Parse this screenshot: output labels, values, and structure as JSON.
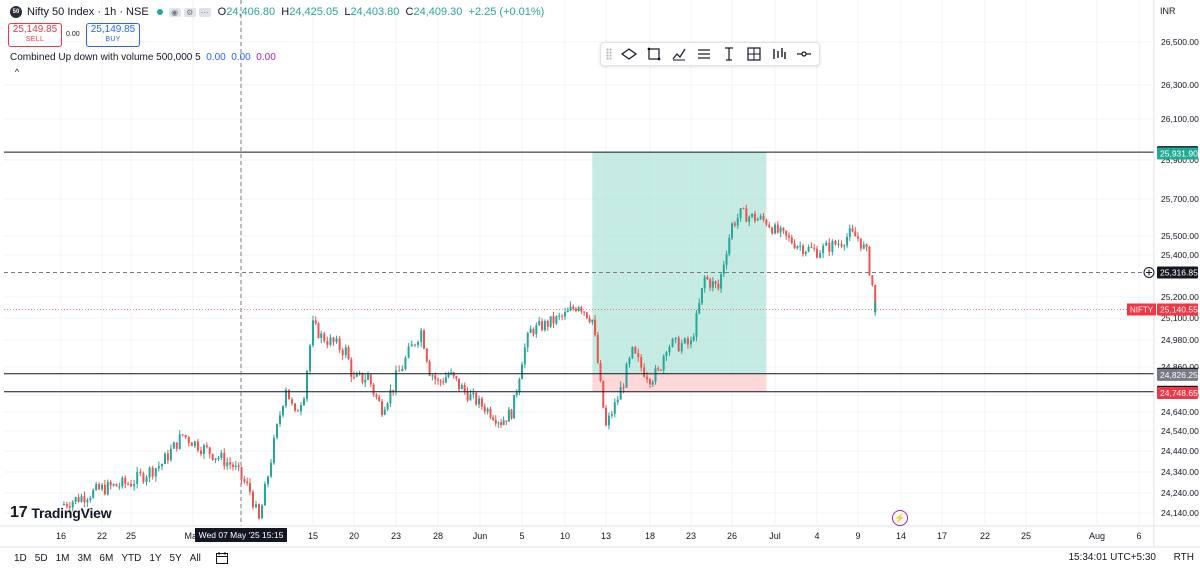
{
  "header": {
    "symbol_badge": "50",
    "title": "Nifty 50 Index · 1h · NSE",
    "ohlc": {
      "o_label": "O",
      "o": "24,406.80",
      "h_label": "H",
      "h": "24,425.05",
      "l_label": "L",
      "l": "24,403.80",
      "c_label": "C",
      "c": "24,409.30",
      "change": "+2.25 (+0.01%)"
    },
    "sell_price": "25,149.85",
    "sell_label": "SELL",
    "spread": "0.00",
    "buy_price": "25,149.85",
    "buy_label": "BUY",
    "indicator": "Combined Up down with volume 500,000 5",
    "indicator_v1": "0.00",
    "indicator_v2": "0.00",
    "indicator_v3": "0.00",
    "collapse_glyph": "^"
  },
  "currency": "INR",
  "logo_mark": "17",
  "logo_text": "TradingView",
  "bolt_glyph": "⚡",
  "crosshair_label": "Wed 07 May '25  15:15",
  "bottom_bar": {
    "ranges": [
      "1D",
      "5D",
      "1M",
      "3M",
      "6M",
      "YTD",
      "1Y",
      "5Y",
      "All"
    ],
    "time": "15:34:01 UTC+5:30",
    "session": "RTH"
  },
  "colors": {
    "up": "#26a69a",
    "down": "#ef5350",
    "target_zone": "#b2e4da",
    "stop_zone": "#fcd4d4",
    "label_dark": "#131722"
  },
  "chart_data": {
    "type": "candlestick",
    "title": "Nifty 50 Index · 1h · NSE",
    "y_axis": {
      "ticks": [
        "26,500.00",
        "26,300.00",
        "26,100.00",
        "25,900.00",
        "25,700.00",
        "25,500.00",
        "25,400.00",
        "25,200.00",
        "25,100.00",
        "24,980.00",
        "24,860.00",
        "24,740.00",
        "24,640.00",
        "24,540.00",
        "24,440.00",
        "24,340.00",
        "24,240.00",
        "24,140.00"
      ],
      "tick_values": [
        26500,
        26300,
        26100,
        25900,
        25700,
        25500,
        25400,
        25200,
        25100,
        24980,
        24860,
        24740,
        24640,
        24540,
        24440,
        24340,
        24240,
        24140
      ]
    },
    "x_axis": {
      "ticks": [
        "16",
        "22",
        "25",
        "May",
        "",
        "15",
        "20",
        "23",
        "28",
        "Jun",
        "5",
        "10",
        "13",
        "18",
        "23",
        "26",
        "Jul",
        "4",
        "9",
        "14",
        "17",
        "22",
        "25",
        "Aug",
        "6"
      ],
      "tick_dates": [
        "2025-04-16",
        "2025-04-22",
        "2025-04-25",
        "2025-05-01",
        "2025-05-07",
        "2025-05-15",
        "2025-05-20",
        "2025-05-23",
        "2025-05-28",
        "2025-06-01",
        "2025-06-05",
        "2025-06-10",
        "2025-06-13",
        "2025-06-18",
        "2025-06-23",
        "2025-06-26",
        "2025-07-01",
        "2025-07-04",
        "2025-07-09",
        "2025-07-14",
        "2025-07-17",
        "2025-07-22",
        "2025-07-25",
        "2025-08-01",
        "2025-08-06"
      ]
    },
    "close_path": [
      [
        "2025-04-16",
        24180
      ],
      [
        "2025-04-22",
        24260
      ],
      [
        "2025-04-25",
        24290
      ],
      [
        "2025-04-28",
        24380
      ],
      [
        "2025-04-30",
        24520
      ],
      [
        "2025-05-02",
        24460
      ],
      [
        "2025-05-06",
        24370
      ],
      [
        "2025-05-08",
        24250
      ],
      [
        "2025-05-09",
        24100
      ],
      [
        "2025-05-12",
        24780
      ],
      [
        "2025-05-13",
        24620
      ],
      [
        "2025-05-14",
        24750
      ],
      [
        "2025-05-15",
        25060
      ],
      [
        "2025-05-16",
        25000
      ],
      [
        "2025-05-19",
        24930
      ],
      [
        "2025-05-20",
        24800
      ],
      [
        "2025-05-21",
        24820
      ],
      [
        "2025-05-22",
        24660
      ],
      [
        "2025-05-23",
        24810
      ],
      [
        "2025-05-26",
        25030
      ],
      [
        "2025-05-27",
        24850
      ],
      [
        "2025-05-28",
        24790
      ],
      [
        "2025-05-29",
        24830
      ],
      [
        "2025-05-30",
        24780
      ],
      [
        "2025-06-02",
        24640
      ],
      [
        "2025-06-03",
        24590
      ],
      [
        "2025-06-04",
        24640
      ],
      [
        "2025-06-05",
        24900
      ],
      [
        "2025-06-06",
        25030
      ],
      [
        "2025-06-09",
        25090
      ],
      [
        "2025-06-10",
        25110
      ],
      [
        "2025-06-11",
        25170
      ],
      [
        "2025-06-12",
        25090
      ],
      [
        "2025-06-13",
        24560
      ],
      [
        "2025-06-16",
        24920
      ],
      [
        "2025-06-17",
        24860
      ],
      [
        "2025-06-18",
        24820
      ],
      [
        "2025-06-19",
        24830
      ],
      [
        "2025-06-20",
        24960
      ],
      [
        "2025-06-23",
        24960
      ],
      [
        "2025-06-24",
        25290
      ],
      [
        "2025-06-25",
        25240
      ],
      [
        "2025-06-26",
        25560
      ],
      [
        "2025-06-27",
        25620
      ],
      [
        "2025-06-30",
        25580
      ],
      [
        "2025-07-01",
        25530
      ],
      [
        "2025-07-02",
        25480
      ],
      [
        "2025-07-03",
        25440
      ],
      [
        "2025-07-04",
        25420
      ],
      [
        "2025-07-07",
        25470
      ],
      [
        "2025-07-08",
        25510
      ],
      [
        "2025-07-09",
        25490
      ],
      [
        "2025-07-10",
        25410
      ],
      [
        "2025-07-11",
        25180
      ],
      [
        "2025-07-11",
        25140
      ]
    ],
    "horizontal_lines": [
      {
        "label": "25,938.65",
        "value": 25938.65
      },
      {
        "label": "24,831.00",
        "value": 24831.0
      },
      {
        "label": "24,754.00",
        "value": 24754.0
      }
    ],
    "dashed_line": {
      "label": "25,316.85",
      "value": 25316.85
    },
    "price_labels": [
      {
        "text": "25,931.90",
        "value": 25931.9,
        "color": "#22ab94"
      },
      {
        "text": "24,826.25",
        "value": 24826.25,
        "color": "#787b86"
      },
      {
        "text": "24,748.65",
        "value": 24748.65,
        "color": "#f23645"
      }
    ],
    "current_price": {
      "symbol": "NIFTY",
      "label": "25,140.55",
      "value": 25140.55
    },
    "position": {
      "type": "long",
      "start": "2025-06-12",
      "end": "2025-06-30",
      "entry": 24831.0,
      "target": 25938.65,
      "stop": 24754.0
    },
    "crosshair_date": "2025-05-07 15:15"
  }
}
